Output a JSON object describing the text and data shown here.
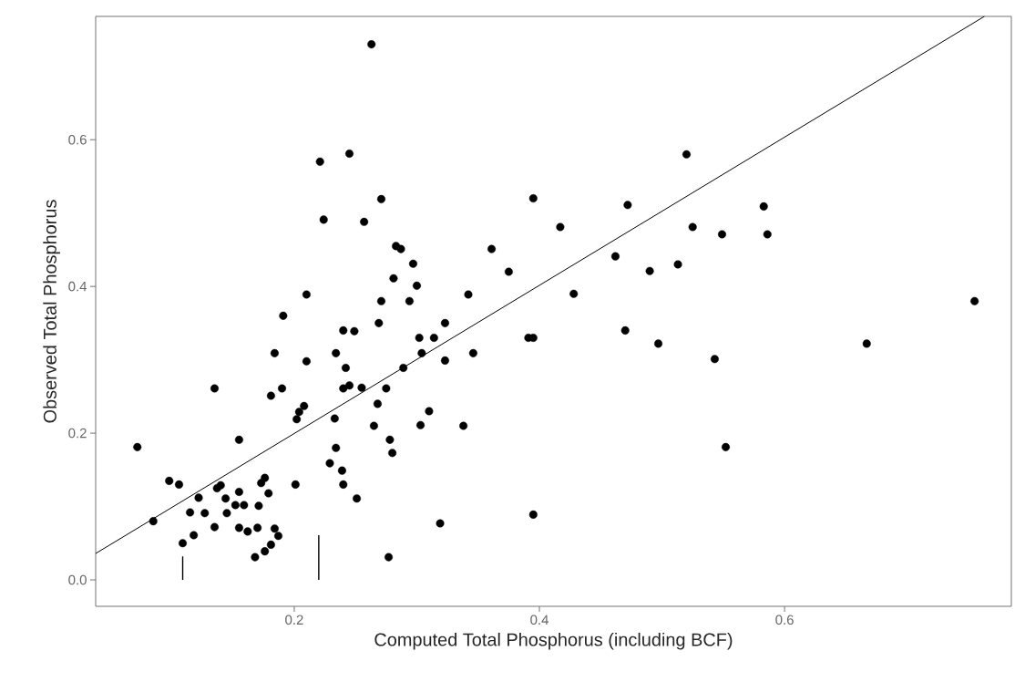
{
  "chart_data": {
    "type": "scatter",
    "xlabel": "Computed Total Phosphorus (including BCF)",
    "ylabel": "Observed Total Phosphorus",
    "xlim": [
      0.038,
      0.785
    ],
    "ylim": [
      -0.036,
      0.768
    ],
    "xticks": [
      0.2,
      0.4,
      0.6
    ],
    "yticks": [
      {
        "value": 0,
        "label": "0.0"
      },
      0.2,
      0.4,
      0.6
    ],
    "grid": false,
    "marker": "circle",
    "series": [
      {
        "color": "#000000",
        "x": [
          0.072,
          0.085,
          0.098,
          0.106,
          0.109,
          0.115,
          0.118,
          0.122,
          0.127,
          0.135,
          0.135,
          0.137,
          0.14,
          0.144,
          0.145,
          0.152,
          0.155,
          0.155,
          0.155,
          0.159,
          0.162,
          0.168,
          0.17,
          0.171,
          0.173,
          0.176,
          0.176,
          0.179,
          0.181,
          0.181,
          0.184,
          0.184,
          0.187,
          0.19,
          0.191,
          0.201,
          0.202,
          0.204,
          0.208,
          0.21,
          0.21,
          0.221,
          0.224,
          0.229,
          0.233,
          0.234,
          0.234,
          0.239,
          0.24,
          0.24,
          0.242,
          0.24,
          0.245,
          0.245,
          0.249,
          0.251,
          0.255,
          0.257,
          0.263,
          0.265,
          0.268,
          0.269,
          0.271,
          0.271,
          0.275,
          0.277,
          0.278,
          0.28,
          0.281,
          0.283,
          0.287,
          0.289,
          0.294,
          0.297,
          0.3,
          0.302,
          0.303,
          0.304,
          0.31,
          0.314,
          0.319,
          0.323,
          0.323,
          0.338,
          0.342,
          0.346,
          0.361,
          0.375,
          0.391,
          0.395,
          0.395,
          0.395,
          0.417,
          0.428,
          0.462,
          0.47,
          0.472,
          0.49,
          0.497,
          0.513,
          0.52,
          0.525,
          0.543,
          0.549,
          0.552,
          0.583,
          0.586,
          0.667,
          0.755
        ],
        "values": [
          0.181,
          0.08,
          0.135,
          0.13,
          0.05,
          0.092,
          0.061,
          0.112,
          0.091,
          0.261,
          0.072,
          0.125,
          0.129,
          0.111,
          0.091,
          0.102,
          0.191,
          0.12,
          0.071,
          0.102,
          0.066,
          0.031,
          0.071,
          0.101,
          0.132,
          0.139,
          0.039,
          0.118,
          0.251,
          0.048,
          0.309,
          0.07,
          0.06,
          0.261,
          0.36,
          0.13,
          0.219,
          0.229,
          0.237,
          0.298,
          0.389,
          0.57,
          0.491,
          0.159,
          0.22,
          0.309,
          0.18,
          0.149,
          0.13,
          0.34,
          0.289,
          0.261,
          0.265,
          0.581,
          0.339,
          0.111,
          0.262,
          0.488,
          0.73,
          0.21,
          0.24,
          0.35,
          0.519,
          0.38,
          0.261,
          0.031,
          0.191,
          0.173,
          0.411,
          0.455,
          0.451,
          0.289,
          0.38,
          0.431,
          0.401,
          0.33,
          0.211,
          0.309,
          0.23,
          0.33,
          0.077,
          0.35,
          0.299,
          0.21,
          0.389,
          0.309,
          0.451,
          0.42,
          0.33,
          0.33,
          0.52,
          0.089,
          0.481,
          0.39,
          0.441,
          0.34,
          0.511,
          0.421,
          0.322,
          0.43,
          0.58,
          0.481,
          0.301,
          0.471,
          0.181,
          0.509,
          0.471,
          0.322,
          0.38
        ]
      },
      {
        "type": "line",
        "color": "#000000",
        "marker": "none",
        "x": [
          0.038,
          0.763
        ],
        "values": [
          0.036,
          0.768
        ]
      },
      {
        "type": "line",
        "color": "#000000",
        "marker": "none",
        "x": [
          0.109,
          0.109
        ],
        "values": [
          0,
          0.032
        ]
      },
      {
        "type": "line",
        "color": "#000000",
        "marker": "none",
        "x": [
          0.22,
          0.22
        ],
        "values": [
          0,
          0.061
        ]
      }
    ]
  }
}
